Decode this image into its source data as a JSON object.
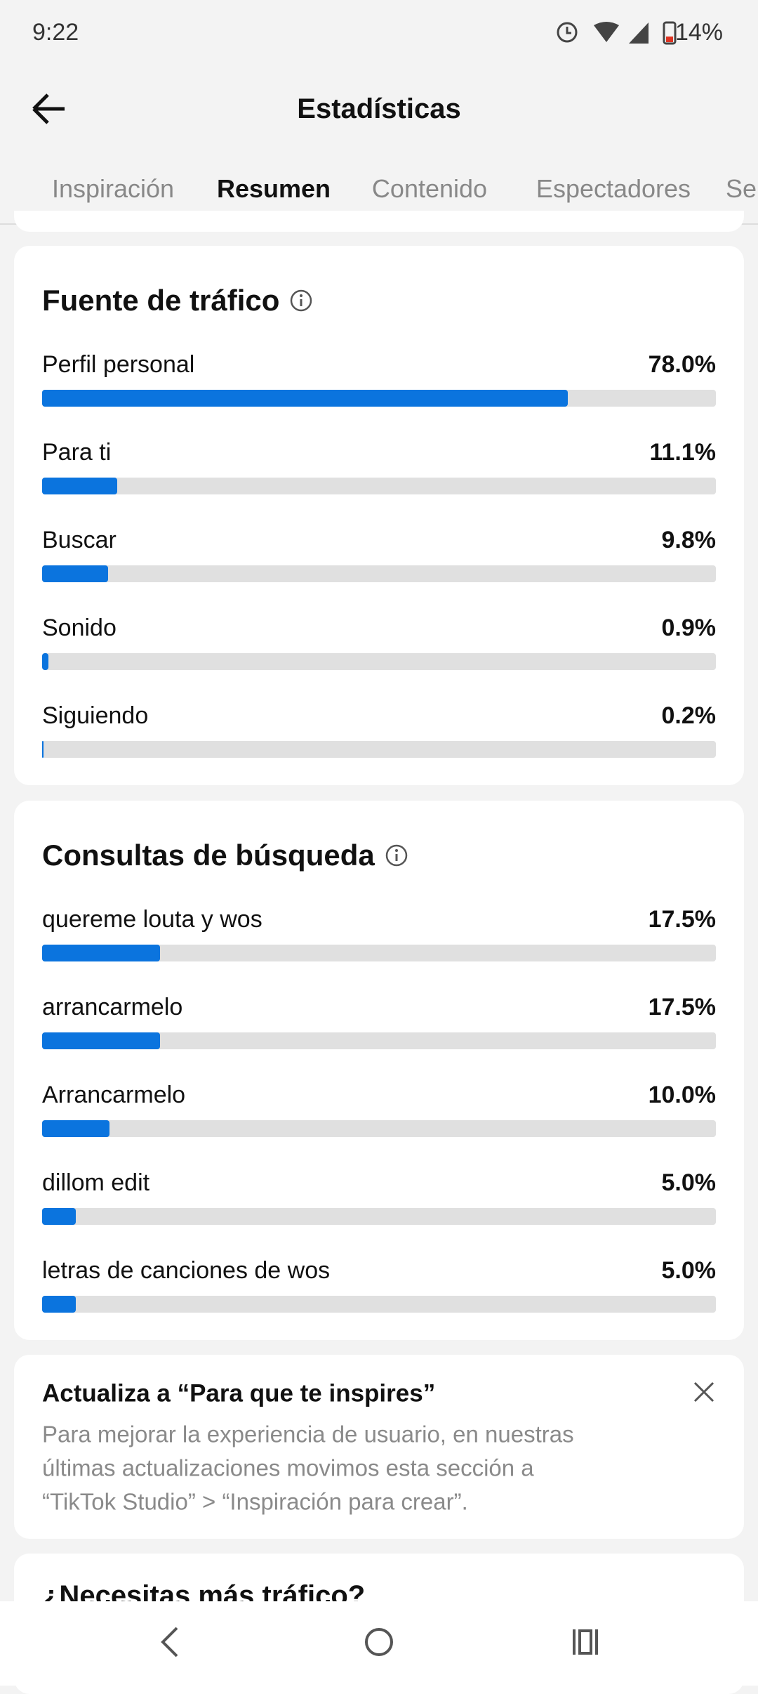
{
  "status_bar": {
    "time": "9:22",
    "battery": "14%"
  },
  "header": {
    "title": "Estadísticas"
  },
  "tabs": [
    {
      "label": "Inspiración",
      "active": false
    },
    {
      "label": "Resumen",
      "active": true
    },
    {
      "label": "Contenido",
      "active": false
    },
    {
      "label": "Espectadores",
      "active": false
    },
    {
      "label": "Se",
      "active": false
    }
  ],
  "sections": [
    {
      "title": "Fuente de tráfico",
      "bar_color": "#0b74de",
      "track_color": "#e0e0e0",
      "scale_max": 100,
      "items": [
        {
          "label": "Perfil personal",
          "value": 78.0,
          "value_label": "78.0%"
        },
        {
          "label": "Para ti",
          "value": 11.1,
          "value_label": "11.1%"
        },
        {
          "label": "Buscar",
          "value": 9.8,
          "value_label": "9.8%"
        },
        {
          "label": "Sonido",
          "value": 0.9,
          "value_label": "0.9%"
        },
        {
          "label": "Siguiendo",
          "value": 0.2,
          "value_label": "0.2%"
        }
      ]
    },
    {
      "title": "Consultas de búsqueda",
      "bar_color": "#0b74de",
      "track_color": "#e0e0e0",
      "scale_max": 100,
      "items": [
        {
          "label": "quereme louta y wos",
          "value": 17.5,
          "value_label": "17.5%"
        },
        {
          "label": "arrancarmelo",
          "value": 17.5,
          "value_label": "17.5%"
        },
        {
          "label": "Arrancarmelo",
          "value": 10.0,
          "value_label": "10.0%"
        },
        {
          "label": "dillom edit",
          "value": 5.0,
          "value_label": "5.0%"
        },
        {
          "label": "letras de canciones de wos",
          "value": 5.0,
          "value_label": "5.0%"
        }
      ]
    }
  ],
  "notice": {
    "title": "Actualiza a “Para que te inspires”",
    "lines": [
      "Para mejorar la experiencia de usuario, en nuestras",
      "últimas actualizaciones movimos esta sección a",
      "“TikTok Studio” > “Inspiración para crear”."
    ]
  },
  "next_card": {
    "title": "¿Necesitas más tráfico?"
  }
}
